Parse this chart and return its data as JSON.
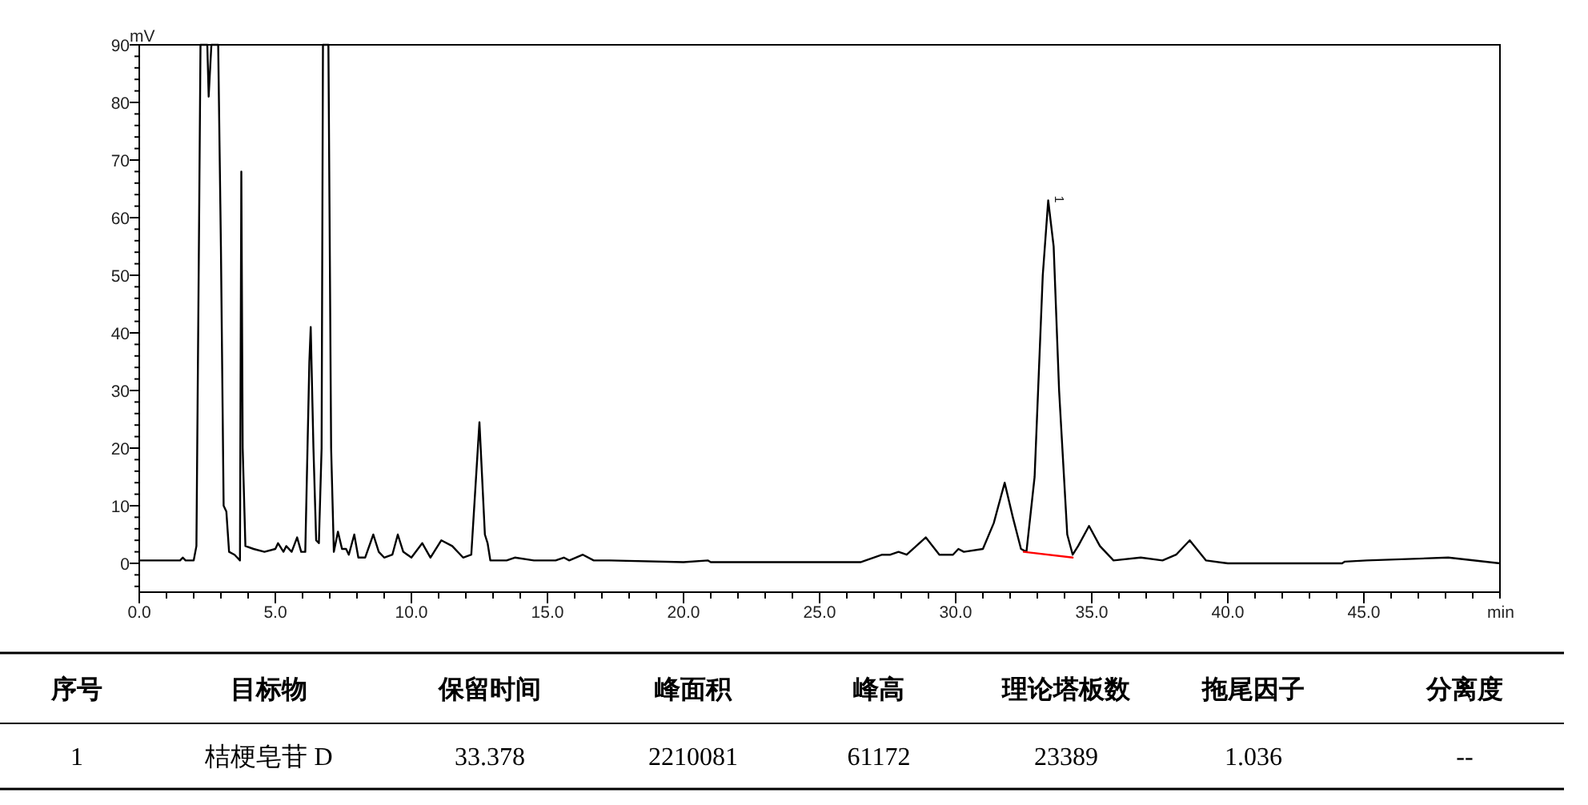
{
  "chart_data": {
    "type": "line",
    "xlabel": "min",
    "ylabel": "mV",
    "xlim": [
      0,
      50
    ],
    "ylim": [
      -5,
      90
    ],
    "grid": false,
    "marker": "none",
    "line_style": "solid",
    "xticks": [
      {
        "value": 0,
        "label": "0.0"
      },
      {
        "value": 1,
        "label": null
      },
      {
        "value": 2,
        "label": null
      },
      {
        "value": 3,
        "label": null
      },
      {
        "value": 4,
        "label": null
      },
      {
        "value": 5,
        "label": "5.0"
      },
      {
        "value": 6,
        "label": null
      },
      {
        "value": 7,
        "label": null
      },
      {
        "value": 8,
        "label": null
      },
      {
        "value": 9,
        "label": null
      },
      {
        "value": 10,
        "label": "10.0"
      },
      {
        "value": 11,
        "label": null
      },
      {
        "value": 12,
        "label": null
      },
      {
        "value": 13,
        "label": null
      },
      {
        "value": 14,
        "label": null
      },
      {
        "value": 15,
        "label": "15.0"
      },
      {
        "value": 16,
        "label": null
      },
      {
        "value": 17,
        "label": null
      },
      {
        "value": 18,
        "label": null
      },
      {
        "value": 19,
        "label": null
      },
      {
        "value": 20,
        "label": "20.0"
      },
      {
        "value": 21,
        "label": null
      },
      {
        "value": 22,
        "label": null
      },
      {
        "value": 23,
        "label": null
      },
      {
        "value": 24,
        "label": null
      },
      {
        "value": 25,
        "label": "25.0"
      },
      {
        "value": 26,
        "label": null
      },
      {
        "value": 27,
        "label": null
      },
      {
        "value": 28,
        "label": null
      },
      {
        "value": 29,
        "label": null
      },
      {
        "value": 30,
        "label": "30.0"
      },
      {
        "value": 31,
        "label": null
      },
      {
        "value": 32,
        "label": null
      },
      {
        "value": 33,
        "label": null
      },
      {
        "value": 34,
        "label": null
      },
      {
        "value": 35,
        "label": "35.0"
      },
      {
        "value": 36,
        "label": null
      },
      {
        "value": 37,
        "label": null
      },
      {
        "value": 38,
        "label": null
      },
      {
        "value": 39,
        "label": null
      },
      {
        "value": 40,
        "label": "40.0"
      },
      {
        "value": 41,
        "label": null
      },
      {
        "value": 42,
        "label": null
      },
      {
        "value": 43,
        "label": null
      },
      {
        "value": 44,
        "label": null
      },
      {
        "value": 45,
        "label": "45.0"
      },
      {
        "value": 46,
        "label": null
      },
      {
        "value": 47,
        "label": null
      },
      {
        "value": 48,
        "label": null
      },
      {
        "value": 49,
        "label": null
      },
      {
        "value": 50,
        "label": null
      }
    ],
    "yticks": [
      {
        "value": -4,
        "label": null
      },
      {
        "value": -2,
        "label": null
      },
      0,
      {
        "value": 2,
        "label": null
      },
      {
        "value": 4,
        "label": null
      },
      {
        "value": 6,
        "label": null
      },
      {
        "value": 8,
        "label": null
      },
      10,
      {
        "value": 12,
        "label": null
      },
      {
        "value": 14,
        "label": null
      },
      {
        "value": 16,
        "label": null
      },
      {
        "value": 18,
        "label": null
      },
      20,
      {
        "value": 22,
        "label": null
      },
      {
        "value": 24,
        "label": null
      },
      {
        "value": 26,
        "label": null
      },
      {
        "value": 28,
        "label": null
      },
      30,
      {
        "value": 32,
        "label": null
      },
      {
        "value": 34,
        "label": null
      },
      {
        "value": 36,
        "label": null
      },
      {
        "value": 38,
        "label": null
      },
      40,
      {
        "value": 42,
        "label": null
      },
      {
        "value": 44,
        "label": null
      },
      {
        "value": 46,
        "label": null
      },
      {
        "value": 48,
        "label": null
      },
      50,
      {
        "value": 52,
        "label": null
      },
      {
        "value": 54,
        "label": null
      },
      {
        "value": 56,
        "label": null
      },
      {
        "value": 58,
        "label": null
      },
      60,
      {
        "value": 62,
        "label": null
      },
      {
        "value": 64,
        "label": null
      },
      {
        "value": 66,
        "label": null
      },
      {
        "value": 68,
        "label": null
      },
      70,
      {
        "value": 72,
        "label": null
      },
      {
        "value": 74,
        "label": null
      },
      {
        "value": 76,
        "label": null
      },
      {
        "value": 78,
        "label": null
      },
      80,
      {
        "value": 82,
        "label": null
      },
      {
        "value": 84,
        "label": null
      },
      {
        "value": 86,
        "label": null
      },
      {
        "value": 88,
        "label": null
      },
      90
    ],
    "series": [
      {
        "color": "#000000",
        "x": [
          0,
          0.5,
          1.5,
          1.6,
          1.7,
          2.0,
          2.1,
          2.2,
          2.25,
          2.5,
          2.55,
          2.65,
          2.9,
          3.0,
          3.1,
          3.2,
          3.3,
          3.5,
          3.6,
          3.7,
          3.75,
          3.8,
          3.9,
          4.2,
          4.6,
          5.0,
          5.1,
          5.3,
          5.4,
          5.6,
          5.8,
          5.95,
          6.1,
          6.25,
          6.3,
          6.4,
          6.5,
          6.6,
          6.7,
          6.75,
          6.95,
          7.05,
          7.15,
          7.3,
          7.45,
          7.6,
          7.7,
          7.9,
          8.05,
          8.3,
          8.6,
          8.8,
          9.0,
          9.3,
          9.5,
          9.7,
          10.0,
          10.4,
          10.7,
          11.1,
          11.5,
          11.9,
          12.2,
          12.5,
          12.7,
          12.8,
          12.9,
          13.5,
          13.8,
          14.5,
          15.3,
          15.6,
          15.8,
          16.3,
          16.7,
          17.3,
          20.0,
          20.9,
          21.0,
          25.0,
          26.5,
          27.3,
          27.6,
          27.9,
          28.2,
          28.9,
          29.4,
          29.9,
          30.1,
          30.3,
          31.0,
          31.4,
          31.8,
          32.1,
          32.4,
          32.6,
          32.9,
          33.2,
          33.4,
          33.6,
          33.8,
          34.1,
          34.3,
          34.5,
          34.9,
          35.3,
          35.8,
          36.8,
          37.6,
          38.1,
          38.6,
          39.2,
          40.0,
          44.2,
          44.3,
          45.1,
          48.1,
          50.0
        ],
        "values": [
          0.5,
          0.5,
          0.5,
          1,
          0.5,
          0.5,
          3,
          60,
          90,
          90,
          81,
          90,
          90,
          55,
          10,
          9,
          2,
          1.5,
          1,
          0.5,
          68,
          20,
          3,
          2.5,
          2,
          2.5,
          3.5,
          2,
          3,
          2,
          4.5,
          2,
          2,
          35,
          41,
          20,
          4,
          3.5,
          20,
          90,
          90,
          20,
          2,
          5.5,
          2.5,
          2.5,
          1.5,
          5,
          1,
          1,
          5,
          2,
          1,
          1.5,
          5,
          2,
          1,
          3.5,
          1,
          4,
          3,
          1,
          1.5,
          24.5,
          5,
          3.5,
          0.5,
          0.5,
          1,
          0.5,
          0.5,
          1,
          0.5,
          1.5,
          0.5,
          0.5,
          0.2,
          0.5,
          0.2,
          0.2,
          0.2,
          1.5,
          1.5,
          2,
          1.5,
          4.5,
          1.5,
          1.5,
          2.5,
          2,
          2.5,
          7,
          14,
          8,
          2.5,
          2,
          15,
          50,
          63,
          55,
          30,
          5,
          1.5,
          3,
          6.5,
          3,
          0.5,
          1,
          0.5,
          1.5,
          4,
          0.5,
          0,
          0,
          0.3,
          0.5,
          1,
          0
        ]
      },
      {
        "color": "#ff0000",
        "x": [
          32.5,
          34.3
        ],
        "values": [
          2,
          1
        ]
      }
    ],
    "annotations": [
      {
        "text": "1",
        "x": 33.4,
        "y": 63
      },
      "序号",
      "目标物",
      "保留时间",
      "峰面积",
      "峰高",
      "理论塔板数",
      "拖尾因子",
      "分离度",
      "1",
      "桔梗皂苷 D",
      "33.378",
      "2210081",
      "61172",
      "23389",
      "1.036",
      "--"
    ]
  }
}
